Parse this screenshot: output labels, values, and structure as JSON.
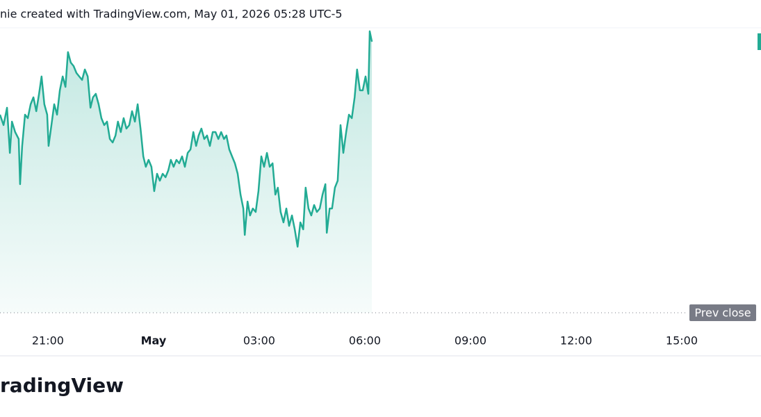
{
  "header": "nie created with TradingView.com, May 01, 2026 05:28 UTC-5",
  "footer": "radingView",
  "chart_data": {
    "type": "area",
    "prev_close_label": "Prev close",
    "prev_close": 0,
    "color": "#22ab94",
    "x": [
      19.64,
      19.74,
      19.84,
      19.92,
      19.98,
      20.07,
      20.17,
      20.21,
      20.27,
      20.35,
      20.43,
      20.51,
      20.59,
      20.67,
      20.75,
      20.82,
      20.9,
      20.98,
      21.02,
      21.1,
      21.18,
      21.26,
      21.34,
      21.42,
      21.5,
      21.57,
      21.65,
      21.73,
      21.81,
      21.89,
      21.97,
      22.05,
      22.13,
      22.21,
      22.28,
      22.36,
      22.44,
      22.52,
      22.6,
      22.68,
      22.76,
      22.84,
      22.92,
      22.99,
      23.07,
      23.15,
      23.23,
      23.31,
      23.39,
      23.47,
      23.55,
      23.63,
      23.71,
      23.78,
      23.86,
      23.94,
      24.02,
      24.1,
      24.18,
      24.26,
      24.34,
      24.42,
      24.49,
      24.57,
      24.65,
      24.73,
      24.81,
      24.89,
      24.97,
      25.05,
      25.13,
      25.21,
      25.28,
      25.36,
      25.44,
      25.52,
      25.6,
      25.68,
      25.76,
      25.84,
      25.92,
      26.0,
      26.07,
      26.15,
      26.23,
      26.31,
      26.39,
      26.47,
      26.55,
      26.59,
      26.67,
      26.74,
      26.82,
      26.9,
      26.98,
      27.06,
      27.14,
      27.22,
      27.3,
      27.38,
      27.46,
      27.53,
      27.61,
      27.69,
      27.77,
      27.85,
      27.93,
      28.01,
      28.09,
      28.17,
      28.25,
      28.32,
      28.4,
      28.48,
      28.56,
      28.64,
      28.72,
      28.8,
      28.88,
      28.92,
      29.0,
      29.07,
      29.15,
      29.23,
      29.31,
      29.39,
      29.47,
      29.55,
      29.63,
      29.71,
      29.78,
      29.86,
      29.94,
      30.02,
      30.1,
      30.14,
      30.2
    ],
    "values": [
      285,
      270,
      295,
      230,
      275,
      260,
      250,
      185,
      240,
      285,
      280,
      300,
      310,
      290,
      315,
      340,
      300,
      285,
      240,
      270,
      300,
      285,
      320,
      340,
      325,
      375,
      360,
      355,
      345,
      340,
      335,
      350,
      340,
      295,
      310,
      315,
      300,
      280,
      270,
      275,
      250,
      245,
      255,
      275,
      260,
      280,
      265,
      270,
      290,
      275,
      300,
      265,
      225,
      210,
      220,
      210,
      175,
      200,
      190,
      200,
      195,
      205,
      220,
      210,
      220,
      215,
      225,
      210,
      230,
      235,
      260,
      240,
      255,
      265,
      250,
      255,
      240,
      260,
      260,
      250,
      260,
      250,
      255,
      235,
      225,
      215,
      200,
      170,
      150,
      112,
      160,
      140,
      150,
      145,
      175,
      225,
      210,
      230,
      210,
      215,
      170,
      180,
      145,
      130,
      150,
      125,
      140,
      120,
      95,
      130,
      120,
      180,
      150,
      140,
      155,
      145,
      150,
      170,
      185,
      115,
      150,
      150,
      180,
      190,
      270,
      230,
      260,
      285,
      280,
      310,
      350,
      320,
      320,
      340,
      315,
      405,
      390
    ],
    "xlim": [
      19.64,
      41.25
    ],
    "ylim": [
      0,
      450
    ],
    "xticks": [
      {
        "value": 21,
        "label": "21:00"
      },
      {
        "value": 24,
        "label": "May"
      },
      {
        "value": 27,
        "label": "03:00"
      },
      {
        "value": 30,
        "label": "06:00"
      },
      {
        "value": 33,
        "label": "09:00"
      },
      {
        "value": 36,
        "label": "12:00"
      },
      {
        "value": 39,
        "label": "15:00"
      }
    ]
  }
}
